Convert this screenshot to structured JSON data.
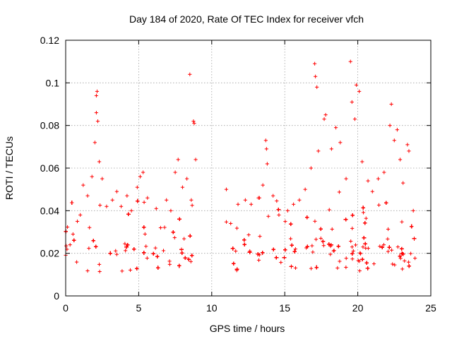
{
  "chart_data": {
    "type": "scatter",
    "title": "Day 184 of 2020, Rate Of TEC Index for receiver vfch",
    "xlabel": "GPS time / hours",
    "ylabel": "ROTI / TECUs",
    "xlim": [
      0,
      25
    ],
    "ylim": [
      0,
      0.12
    ],
    "x_ticks": [
      0,
      5,
      10,
      15,
      20,
      25
    ],
    "y_ticks": [
      0,
      0.02,
      0.04,
      0.06,
      0.08,
      0.1,
      0.12
    ],
    "x_tick_labels": [
      "0",
      "5",
      "10",
      "15",
      "20",
      "25"
    ],
    "y_tick_labels": [
      "0",
      "0.02",
      "0.04",
      "0.06",
      "0.08",
      "0.1",
      "0.12"
    ],
    "grid": true,
    "marker": "+",
    "color": "#ff0000",
    "data_gap": [
      9.0,
      10.9
    ],
    "series": [
      {
        "name": "ROTI",
        "points": [
          [
            0.3,
            0.024
          ],
          [
            0.5,
            0.029
          ],
          [
            0.8,
            0.035
          ],
          [
            1.0,
            0.038
          ],
          [
            1.2,
            0.052
          ],
          [
            1.5,
            0.047
          ],
          [
            1.8,
            0.056
          ],
          [
            2.0,
            0.072
          ],
          [
            2.1,
            0.086
          ],
          [
            2.1,
            0.094
          ],
          [
            2.15,
            0.096
          ],
          [
            2.2,
            0.082
          ],
          [
            2.3,
            0.063
          ],
          [
            2.5,
            0.055
          ],
          [
            2.8,
            0.042
          ],
          [
            3.2,
            0.045
          ],
          [
            3.5,
            0.049
          ],
          [
            3.8,
            0.042
          ],
          [
            4.2,
            0.047
          ],
          [
            4.5,
            0.04
          ],
          [
            4.9,
            0.051
          ],
          [
            5.1,
            0.056
          ],
          [
            5.3,
            0.058
          ],
          [
            5.6,
            0.046
          ],
          [
            6.2,
            0.041
          ],
          [
            6.5,
            0.032
          ],
          [
            6.9,
            0.045
          ],
          [
            7.2,
            0.04
          ],
          [
            7.5,
            0.058
          ],
          [
            7.7,
            0.064
          ],
          [
            8.0,
            0.051
          ],
          [
            8.3,
            0.055
          ],
          [
            8.5,
            0.104
          ],
          [
            8.6,
            0.045
          ],
          [
            8.75,
            0.082
          ],
          [
            8.8,
            0.081
          ],
          [
            8.9,
            0.064
          ],
          [
            11.0,
            0.05
          ],
          [
            11.3,
            0.034
          ],
          [
            11.8,
            0.043
          ],
          [
            12.3,
            0.045
          ],
          [
            12.7,
            0.043
          ],
          [
            13.2,
            0.046
          ],
          [
            13.5,
            0.052
          ],
          [
            13.7,
            0.073
          ],
          [
            13.75,
            0.069
          ],
          [
            13.8,
            0.062
          ],
          [
            14.2,
            0.047
          ],
          [
            14.6,
            0.038
          ],
          [
            15.2,
            0.04
          ],
          [
            15.6,
            0.043
          ],
          [
            16.0,
            0.045
          ],
          [
            16.4,
            0.05
          ],
          [
            16.8,
            0.06
          ],
          [
            17.05,
            0.109
          ],
          [
            17.1,
            0.103
          ],
          [
            17.2,
            0.098
          ],
          [
            17.3,
            0.068
          ],
          [
            17.7,
            0.083
          ],
          [
            17.8,
            0.085
          ],
          [
            18.2,
            0.069
          ],
          [
            18.5,
            0.079
          ],
          [
            18.8,
            0.072
          ],
          [
            19.2,
            0.055
          ],
          [
            19.5,
            0.11
          ],
          [
            19.6,
            0.091
          ],
          [
            19.8,
            0.083
          ],
          [
            19.9,
            0.099
          ],
          [
            20.1,
            0.096
          ],
          [
            20.3,
            0.063
          ],
          [
            20.7,
            0.054
          ],
          [
            21.0,
            0.049
          ],
          [
            21.4,
            0.055
          ],
          [
            21.8,
            0.058
          ],
          [
            22.2,
            0.08
          ],
          [
            22.3,
            0.09
          ],
          [
            22.5,
            0.073
          ],
          [
            22.7,
            0.078
          ],
          [
            22.9,
            0.064
          ],
          [
            23.1,
            0.053
          ],
          [
            23.4,
            0.071
          ],
          [
            23.5,
            0.068
          ],
          [
            23.8,
            0.04
          ]
        ]
      }
    ]
  }
}
